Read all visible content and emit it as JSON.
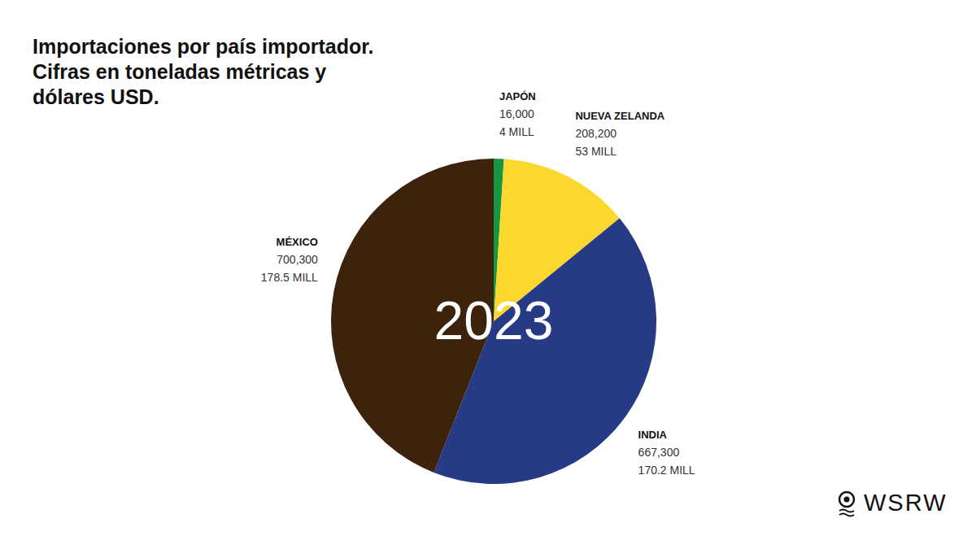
{
  "chart_data": {
    "type": "pie",
    "title": [
      "Importaciones por país importador.",
      "Cifras en toneladas métricas y",
      "dólares USD."
    ],
    "categories": [
      "JAPÓN",
      "NUEVA ZELANDA",
      "INDIA",
      "MÉXICO"
    ],
    "values": [
      16000,
      208200,
      667300,
      700300
    ],
    "value_labels": [
      "16,000",
      "208,200",
      "667,300",
      "700,300"
    ],
    "usd_values": [
      4000000,
      53000000,
      170200000,
      178500000
    ],
    "usd_labels": [
      "4 MILL",
      "53 MILL",
      "170.2 MILL",
      "178.5 MILL"
    ],
    "colors": [
      "#15973f",
      "#fcd82e",
      "#263a85",
      "#3d220c"
    ],
    "center_label": "2023",
    "data_labels": true,
    "source": "WSRW"
  }
}
